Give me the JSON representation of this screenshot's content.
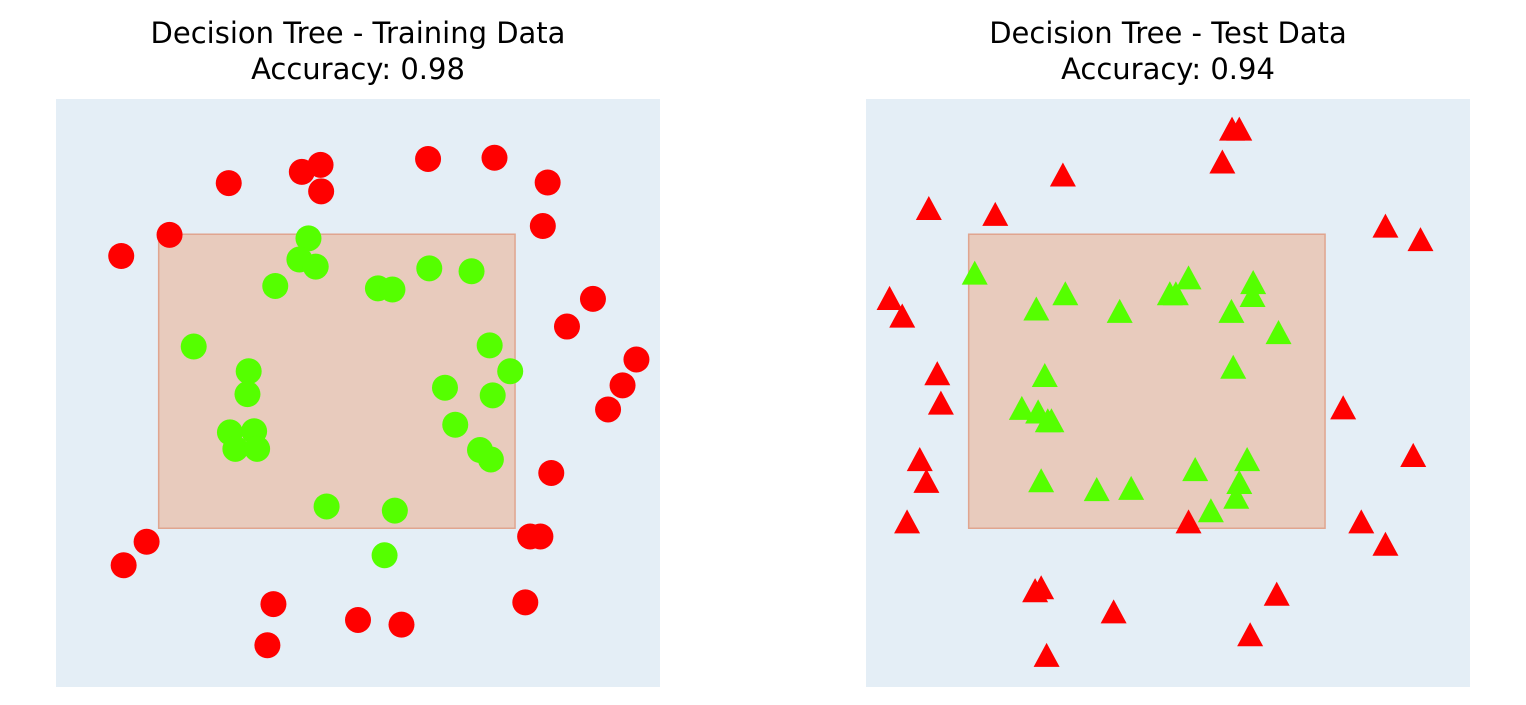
{
  "chart_data": [
    {
      "type": "scatter",
      "title": "Decision Tree - Training Data",
      "subtitle": "Accuracy: 0.98",
      "marker": "circle",
      "xlim": [
        0,
        10
      ],
      "ylim": [
        0,
        10
      ],
      "decision_region": {
        "x": [
          1.7,
          7.6
        ],
        "y": [
          2.7,
          7.7
        ],
        "color": "#e8cbbd"
      },
      "background_color": "#e4eef6",
      "series": [
        {
          "color": "#ff0000",
          "points": [
            [
              1.08,
              7.33
            ],
            [
              1.88,
              7.69
            ],
            [
              2.86,
              8.57
            ],
            [
              4.07,
              8.76
            ],
            [
              4.39,
              8.43
            ],
            [
              4.38,
              8.88
            ],
            [
              6.16,
              8.98
            ],
            [
              7.26,
              9.0
            ],
            [
              8.14,
              8.58
            ],
            [
              8.06,
              7.84
            ],
            [
              8.89,
              6.6
            ],
            [
              8.46,
              6.13
            ],
            [
              9.61,
              5.57
            ],
            [
              9.38,
              5.13
            ],
            [
              9.14,
              4.72
            ],
            [
              8.2,
              3.64
            ],
            [
              7.85,
              2.56
            ],
            [
              8.02,
              2.56
            ],
            [
              1.5,
              2.47
            ],
            [
              1.12,
              2.07
            ],
            [
              3.6,
              1.41
            ],
            [
              5.0,
              1.14
            ],
            [
              5.72,
              1.06
            ],
            [
              7.77,
              1.44
            ],
            [
              3.5,
              0.71
            ]
          ]
        },
        {
          "color": "#55ff00",
          "points": [
            [
              4.18,
              7.63
            ],
            [
              4.03,
              7.27
            ],
            [
              4.3,
              7.15
            ],
            [
              3.63,
              6.82
            ],
            [
              5.33,
              6.78
            ],
            [
              5.57,
              6.76
            ],
            [
              6.18,
              7.12
            ],
            [
              6.88,
              7.07
            ],
            [
              2.28,
              5.79
            ],
            [
              3.19,
              5.37
            ],
            [
              3.17,
              4.98
            ],
            [
              2.88,
              4.33
            ],
            [
              3.28,
              4.35
            ],
            [
              2.97,
              4.05
            ],
            [
              3.33,
              4.05
            ],
            [
              7.18,
              5.81
            ],
            [
              7.52,
              5.37
            ],
            [
              6.44,
              5.09
            ],
            [
              7.23,
              4.96
            ],
            [
              6.61,
              4.46
            ],
            [
              7.02,
              4.03
            ],
            [
              7.2,
              3.87
            ],
            [
              4.48,
              3.07
            ],
            [
              5.61,
              3.0
            ],
            [
              5.44,
              2.24
            ]
          ]
        }
      ]
    },
    {
      "type": "scatter",
      "title": "Decision Tree - Test Data",
      "subtitle": "Accuracy: 0.94",
      "marker": "triangle",
      "xlim": [
        0,
        10
      ],
      "ylim": [
        0,
        10
      ],
      "decision_region": {
        "x": [
          1.7,
          7.6
        ],
        "y": [
          2.7,
          7.7
        ],
        "color": "#e8cbbd"
      },
      "background_color": "#e4eef6",
      "series": [
        {
          "color": "#ff0000",
          "points": [
            [
              6.06,
              9.48
            ],
            [
              6.18,
              9.48
            ],
            [
              5.9,
              8.92
            ],
            [
              3.26,
              8.7
            ],
            [
              1.04,
              8.13
            ],
            [
              2.14,
              8.03
            ],
            [
              8.6,
              7.83
            ],
            [
              9.18,
              7.6
            ],
            [
              0.39,
              6.6
            ],
            [
              0.6,
              6.3
            ],
            [
              1.18,
              5.32
            ],
            [
              1.24,
              4.82
            ],
            [
              7.9,
              4.74
            ],
            [
              0.89,
              3.86
            ],
            [
              1.0,
              3.49
            ],
            [
              9.06,
              3.93
            ],
            [
              0.68,
              2.8
            ],
            [
              5.34,
              2.8
            ],
            [
              8.2,
              2.8
            ],
            [
              8.6,
              2.42
            ],
            [
              2.8,
              1.63
            ],
            [
              2.9,
              1.68
            ],
            [
              4.1,
              1.27
            ],
            [
              6.8,
              1.57
            ],
            [
              6.36,
              0.88
            ],
            [
              2.99,
              0.53
            ]
          ]
        },
        {
          "color": "#55ff00",
          "points": [
            [
              1.8,
              7.03
            ],
            [
              6.41,
              6.87
            ],
            [
              5.34,
              6.95
            ],
            [
              5.03,
              6.68
            ],
            [
              5.13,
              6.68
            ],
            [
              3.3,
              6.68
            ],
            [
              2.82,
              6.42
            ],
            [
              4.2,
              6.38
            ],
            [
              6.05,
              6.38
            ],
            [
              6.4,
              6.65
            ],
            [
              6.83,
              6.02
            ],
            [
              6.08,
              5.43
            ],
            [
              2.96,
              5.29
            ],
            [
              2.58,
              4.73
            ],
            [
              2.85,
              4.67
            ],
            [
              3.01,
              4.52
            ],
            [
              3.07,
              4.52
            ],
            [
              6.31,
              3.86
            ],
            [
              5.45,
              3.69
            ],
            [
              2.9,
              3.5
            ],
            [
              3.82,
              3.35
            ],
            [
              4.39,
              3.37
            ],
            [
              6.18,
              3.47
            ],
            [
              6.13,
              3.22
            ],
            [
              5.71,
              2.99
            ]
          ]
        }
      ]
    }
  ]
}
